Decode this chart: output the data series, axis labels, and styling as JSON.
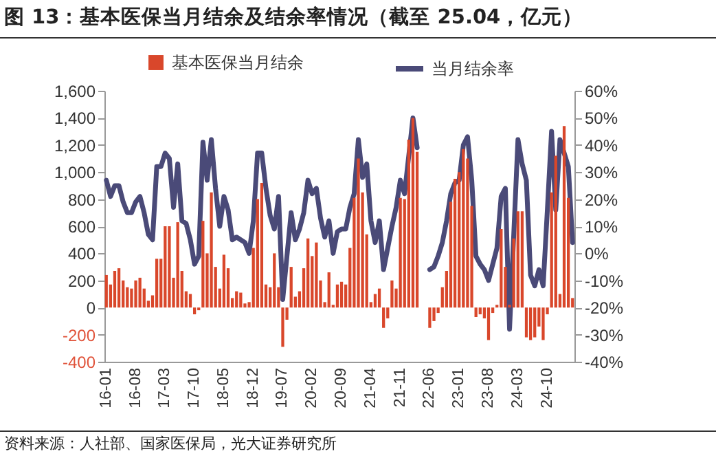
{
  "chart_data": {
    "type": "bar",
    "title": "图 13：基本医保当月结余及结余率情况（截至 25.04，亿元）",
    "annotations": [
      "资料来源：人社部、国家医保局，光大证券研究所"
    ],
    "categories": [
      "16-01",
      null,
      null,
      null,
      null,
      null,
      null,
      "16-08",
      null,
      null,
      null,
      null,
      null,
      null,
      "17-03",
      null,
      null,
      null,
      null,
      null,
      null,
      "17-10",
      null,
      null,
      null,
      null,
      null,
      null,
      "18-05",
      null,
      null,
      null,
      null,
      null,
      null,
      "18-12",
      null,
      null,
      null,
      null,
      null,
      null,
      "19-07",
      null,
      null,
      null,
      null,
      null,
      null,
      "20-02",
      null,
      null,
      null,
      null,
      null,
      null,
      "20-09",
      null,
      null,
      null,
      null,
      null,
      null,
      "21-04",
      null,
      null,
      null,
      null,
      null,
      null,
      "21-11",
      null,
      null,
      null,
      null,
      null,
      null,
      "22-06",
      null,
      null,
      null,
      null,
      null,
      null,
      "23-01",
      null,
      null,
      null,
      null,
      null,
      null,
      "23-08",
      null,
      null,
      null,
      null,
      null,
      null,
      "24-03",
      null,
      null,
      null,
      null,
      null,
      null,
      "24-10",
      null,
      null,
      null,
      null,
      null,
      null
    ],
    "series": [
      {
        "name": "基本医保当月结余",
        "color": "#d9472b",
        "values": [
          240,
          170,
          270,
          290,
          200,
          150,
          140,
          200,
          220,
          140,
          50,
          90,
          360,
          360,
          600,
          600,
          220,
          630,
          270,
          120,
          100,
          -50,
          -20,
          640,
          400,
          850,
          300,
          140,
          390,
          290,
          70,
          120,
          110,
          30,
          40,
          440,
          800,
          920,
          170,
          150,
          400,
          150,
          -290,
          -90,
          300,
          80,
          120,
          290,
          510,
          380,
          480,
          200,
          40,
          260,
          20,
          170,
          190,
          170,
          440,
          810,
          1100,
          850,
          540,
          40,
          100,
          140,
          -150,
          -80,
          200,
          140,
          810,
          800,
          1240,
          1400,
          1150,
          null,
          null,
          -150,
          -100,
          -40,
          150,
          270,
          780,
          950,
          1000,
          1170,
          1100,
          750,
          -70,
          -50,
          -80,
          -240,
          -40,
          20,
          580,
          300,
          20,
          510,
          710,
          710,
          -220,
          -240,
          -220,
          -140,
          -240,
          -50,
          850,
          1120,
          100,
          1340,
          810,
          70
        ]
      },
      {
        "name": "当月结余率",
        "type": "line",
        "axis": "y2",
        "color": "#4a4a78",
        "values": [
          27,
          21,
          25,
          25,
          19,
          15,
          15,
          19,
          21,
          15,
          7,
          5,
          32,
          32,
          37,
          35,
          17,
          33,
          12,
          11,
          5,
          -4,
          -1,
          41,
          27,
          42,
          24,
          10,
          21,
          16,
          5,
          6,
          5,
          4,
          0,
          12,
          37,
          37,
          24,
          14,
          9,
          21,
          -17,
          -1,
          15,
          5,
          9,
          15,
          27,
          22,
          24,
          13,
          6,
          12,
          0,
          8,
          9,
          9,
          17,
          22,
          42,
          28,
          33,
          12,
          4,
          12,
          -6,
          2,
          10,
          17,
          27,
          22,
          36,
          50,
          39,
          null,
          null,
          -6,
          -5,
          -1,
          4,
          12,
          22,
          26,
          27,
          40,
          43,
          27,
          -1,
          -4,
          -6,
          -10,
          -4,
          2,
          21,
          24,
          -28,
          7,
          42,
          33,
          27,
          -8,
          -12,
          -6,
          -12,
          16,
          45,
          16,
          42,
          37,
          32,
          4
        ]
      }
    ],
    "ylim": [
      -400,
      1600
    ],
    "yticks": [
      -400,
      -200,
      0,
      200,
      400,
      600,
      800,
      {
        "value": 1000,
        "label": "1,000"
      },
      {
        "value": 1200,
        "label": "1,200"
      },
      {
        "value": 1400,
        "label": "1,400"
      },
      {
        "value": 1600,
        "label": "1,600"
      }
    ],
    "y2lim": [
      -40,
      60
    ],
    "y2ticks": [
      {
        "value": -40,
        "label": "-40%"
      },
      {
        "value": -30,
        "label": "-30%"
      },
      {
        "value": -20,
        "label": "-20%"
      },
      {
        "value": -10,
        "label": "-10%"
      },
      {
        "value": 0,
        "label": "0%"
      },
      {
        "value": 10,
        "label": "10%"
      },
      {
        "value": 20,
        "label": "20%"
      },
      {
        "value": 30,
        "label": "30%"
      },
      {
        "value": 40,
        "label": "40%"
      },
      {
        "value": 50,
        "label": "50%"
      },
      {
        "value": 60,
        "label": "60%"
      }
    ],
    "legend": "top",
    "grid": false
  }
}
